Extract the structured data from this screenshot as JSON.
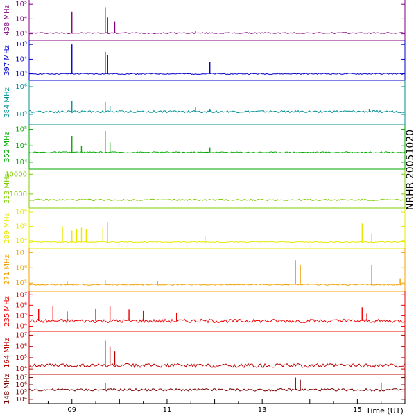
{
  "chart_data": {
    "type": "line",
    "title": "NRHR 20051020",
    "xlabel": "Time (UT)",
    "x_range_ut_hours": [
      8.1,
      16.0
    ],
    "x_ticks": [
      {
        "value": 9,
        "label": "09"
      },
      {
        "value": 11,
        "label": "11"
      },
      {
        "value": 13,
        "label": "13"
      },
      {
        "value": 15,
        "label": "15"
      }
    ],
    "panels": [
      {
        "name": "438 MHz",
        "color": "#800080",
        "ylog": true,
        "ticks": [
          {
            "v": 5,
            "l": "10⁵"
          },
          {
            "v": 4,
            "l": "10⁴"
          },
          {
            "v": 3,
            "l": "10³"
          }
        ],
        "baseline": 3.05,
        "spikes": [
          [
            9.0,
            4.5
          ],
          [
            9.7,
            4.8
          ],
          [
            9.75,
            4.1
          ],
          [
            9.9,
            3.8
          ],
          [
            11.6,
            3.2
          ]
        ]
      },
      {
        "name": "397 MHz",
        "color": "#0000cc",
        "ylog": true,
        "ticks": [
          {
            "v": 5,
            "l": "10⁵"
          },
          {
            "v": 4,
            "l": "10⁴"
          },
          {
            "v": 3,
            "l": "10³"
          }
        ],
        "baseline": 3.0,
        "spikes": [
          [
            9.0,
            5.0
          ],
          [
            9.7,
            4.5
          ],
          [
            9.75,
            4.3
          ],
          [
            11.9,
            3.8
          ]
        ]
      },
      {
        "name": "384 MHz",
        "color": "#009090",
        "ylog": true,
        "ticks": [
          {
            "v": 6,
            "l": "10⁶"
          },
          {
            "v": 5,
            "l": "10⁵"
          }
        ],
        "baseline": 5.1,
        "spikes": [
          [
            9.0,
            5.5
          ],
          [
            9.7,
            5.45
          ],
          [
            9.8,
            5.3
          ],
          [
            11.6,
            5.25
          ],
          [
            11.9,
            5.2
          ],
          [
            15.25,
            5.2
          ]
        ]
      },
      {
        "name": "352 MHz",
        "color": "#00aa00",
        "ylog": true,
        "ticks": [
          {
            "v": 5,
            "l": "10⁵"
          },
          {
            "v": 4,
            "l": "10⁴"
          },
          {
            "v": 3,
            "l": "10³"
          }
        ],
        "baseline": 3.6,
        "spikes": [
          [
            9.0,
            4.6
          ],
          [
            9.2,
            4.0
          ],
          [
            9.7,
            4.9
          ],
          [
            9.8,
            4.2
          ],
          [
            11.9,
            3.9
          ]
        ]
      },
      {
        "name": "333 MHz",
        "color": "#80cc00",
        "ylog": true,
        "ticks": [
          {
            "v": 4,
            "l": "10000"
          },
          {
            "v": 3,
            "l": "1000"
          }
        ],
        "baseline": 2.7,
        "spikes": []
      },
      {
        "name": "289 MHz",
        "color": "#e8e800",
        "ylog": true,
        "ticks": [
          {
            "v": 6,
            "l": "10⁶"
          },
          {
            "v": 5,
            "l": "10⁵"
          },
          {
            "v": 4,
            "l": "10⁴"
          }
        ],
        "baseline": 3.9,
        "spikes": [
          [
            8.8,
            5.0
          ],
          [
            9.0,
            4.7
          ],
          [
            9.1,
            4.8
          ],
          [
            9.2,
            4.9
          ],
          [
            9.3,
            4.8
          ],
          [
            9.65,
            4.9
          ],
          [
            9.75,
            5.3
          ],
          [
            11.8,
            4.3
          ],
          [
            15.1,
            5.2
          ],
          [
            15.3,
            4.5
          ]
        ]
      },
      {
        "name": "271 MHz",
        "color": "#f0a000",
        "ylog": true,
        "ticks": [
          {
            "v": 7,
            "l": "10⁷"
          },
          {
            "v": 6,
            "l": "10⁶"
          },
          {
            "v": 5,
            "l": "10⁵"
          }
        ],
        "baseline": 4.9,
        "spikes": [
          [
            8.9,
            5.1
          ],
          [
            9.7,
            5.2
          ],
          [
            10.8,
            5.1
          ],
          [
            13.7,
            6.5
          ],
          [
            13.8,
            6.2
          ],
          [
            15.3,
            6.2
          ],
          [
            15.9,
            5.3
          ]
        ]
      },
      {
        "name": "235 MHz",
        "color": "#ee0000",
        "ylog": true,
        "ticks": [
          {
            "v": 7,
            "l": "10⁷"
          },
          {
            "v": 6,
            "l": "10⁶"
          },
          {
            "v": 5,
            "l": "10⁵"
          },
          {
            "v": 4,
            "l": "10⁴"
          }
        ],
        "baseline": 4.5,
        "spikes": [
          [
            8.3,
            5.7
          ],
          [
            8.6,
            5.9
          ],
          [
            8.9,
            5.4
          ],
          [
            9.5,
            5.7
          ],
          [
            9.8,
            5.9
          ],
          [
            10.2,
            5.6
          ],
          [
            10.5,
            5.5
          ],
          [
            11.2,
            5.3
          ],
          [
            15.1,
            5.8
          ],
          [
            15.2,
            5.2
          ]
        ]
      },
      {
        "name": "164 MHz",
        "color": "#bb0000",
        "ylog": true,
        "ticks": [
          {
            "v": 7,
            "l": "10⁷"
          },
          {
            "v": 6,
            "l": "10⁶"
          },
          {
            "v": 5,
            "l": "10⁵"
          },
          {
            "v": 4,
            "l": "10⁴"
          }
        ],
        "baseline": 4.3,
        "spikes": [
          [
            9.7,
            6.5
          ],
          [
            9.8,
            6.0
          ],
          [
            9.9,
            5.6
          ]
        ]
      },
      {
        "name": "148 MHz",
        "color": "#7a0000",
        "ylog": true,
        "ticks": [
          {
            "v": 7,
            "l": "10⁷"
          },
          {
            "v": 6,
            "l": "10⁶"
          },
          {
            "v": 5,
            "l": "10⁵"
          },
          {
            "v": 4,
            "l": "10⁴"
          }
        ],
        "baseline": 5.3,
        "spikes": [
          [
            9.7,
            6.2
          ],
          [
            13.7,
            7.0
          ],
          [
            13.8,
            6.7
          ],
          [
            15.5,
            6.3
          ]
        ]
      }
    ]
  }
}
